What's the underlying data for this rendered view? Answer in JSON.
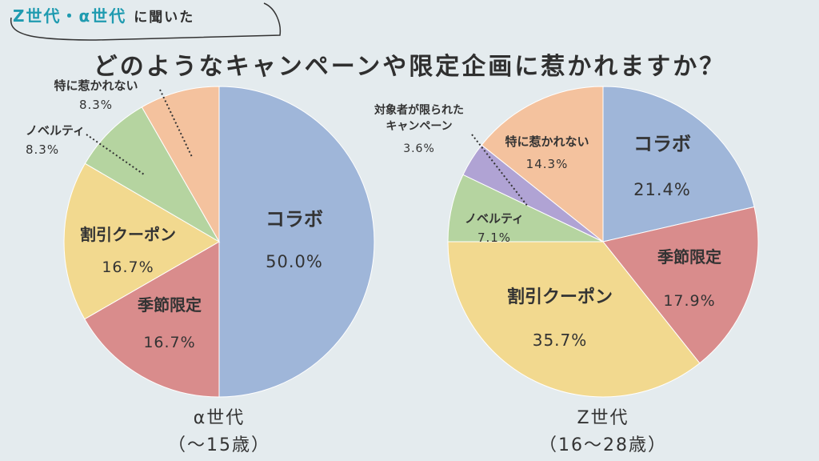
{
  "header": {
    "tag_accent": "Z世代・α世代",
    "tag_plain": "に聞いた",
    "headline": "どのようなキャンペーンや限定企画に惹かれますか？"
  },
  "colors": {
    "collab": "#9fb6d9",
    "seasonal": "#d98c8c",
    "coupon": "#f2d98f",
    "novelty": "#b5d4a0",
    "limited_target": "#b0a3d4",
    "none": "#f4c29e",
    "accent": "#1f9bb0",
    "background": "#e4ebee"
  },
  "chart_data": [
    {
      "type": "pie",
      "title": "α世代",
      "subtitle": "（〜15歳）",
      "slices": [
        {
          "label": "コラボ",
          "value": 50.0,
          "display": "50.0%",
          "color": "#9fb6d9"
        },
        {
          "label": "季節限定",
          "value": 16.7,
          "display": "16.7%",
          "color": "#d98c8c"
        },
        {
          "label": "割引クーポン",
          "value": 16.7,
          "display": "16.7%",
          "color": "#f2d98f"
        },
        {
          "label": "ノベルティ",
          "value": 8.3,
          "display": "8.3%",
          "color": "#b5d4a0"
        },
        {
          "label": "特に惹かれない",
          "value": 8.3,
          "display": "8.3%",
          "color": "#f4c29e"
        }
      ]
    },
    {
      "type": "pie",
      "title": "Z世代",
      "subtitle": "（16〜28歳）",
      "slices": [
        {
          "label": "コラボ",
          "value": 21.4,
          "display": "21.4%",
          "color": "#9fb6d9"
        },
        {
          "label": "季節限定",
          "value": 17.9,
          "display": "17.9%",
          "color": "#d98c8c"
        },
        {
          "label": "割引クーポン",
          "value": 35.7,
          "display": "35.7%",
          "color": "#f2d98f"
        },
        {
          "label": "ノベルティ",
          "value": 7.1,
          "display": "7.1%",
          "color": "#b5d4a0"
        },
        {
          "label": "対象者が限られたキャンペーン",
          "value": 3.6,
          "display": "3.6%",
          "color": "#b0a3d4"
        },
        {
          "label": "特に惹かれない",
          "value": 14.3,
          "display": "14.3%",
          "color": "#f4c29e"
        }
      ]
    }
  ]
}
